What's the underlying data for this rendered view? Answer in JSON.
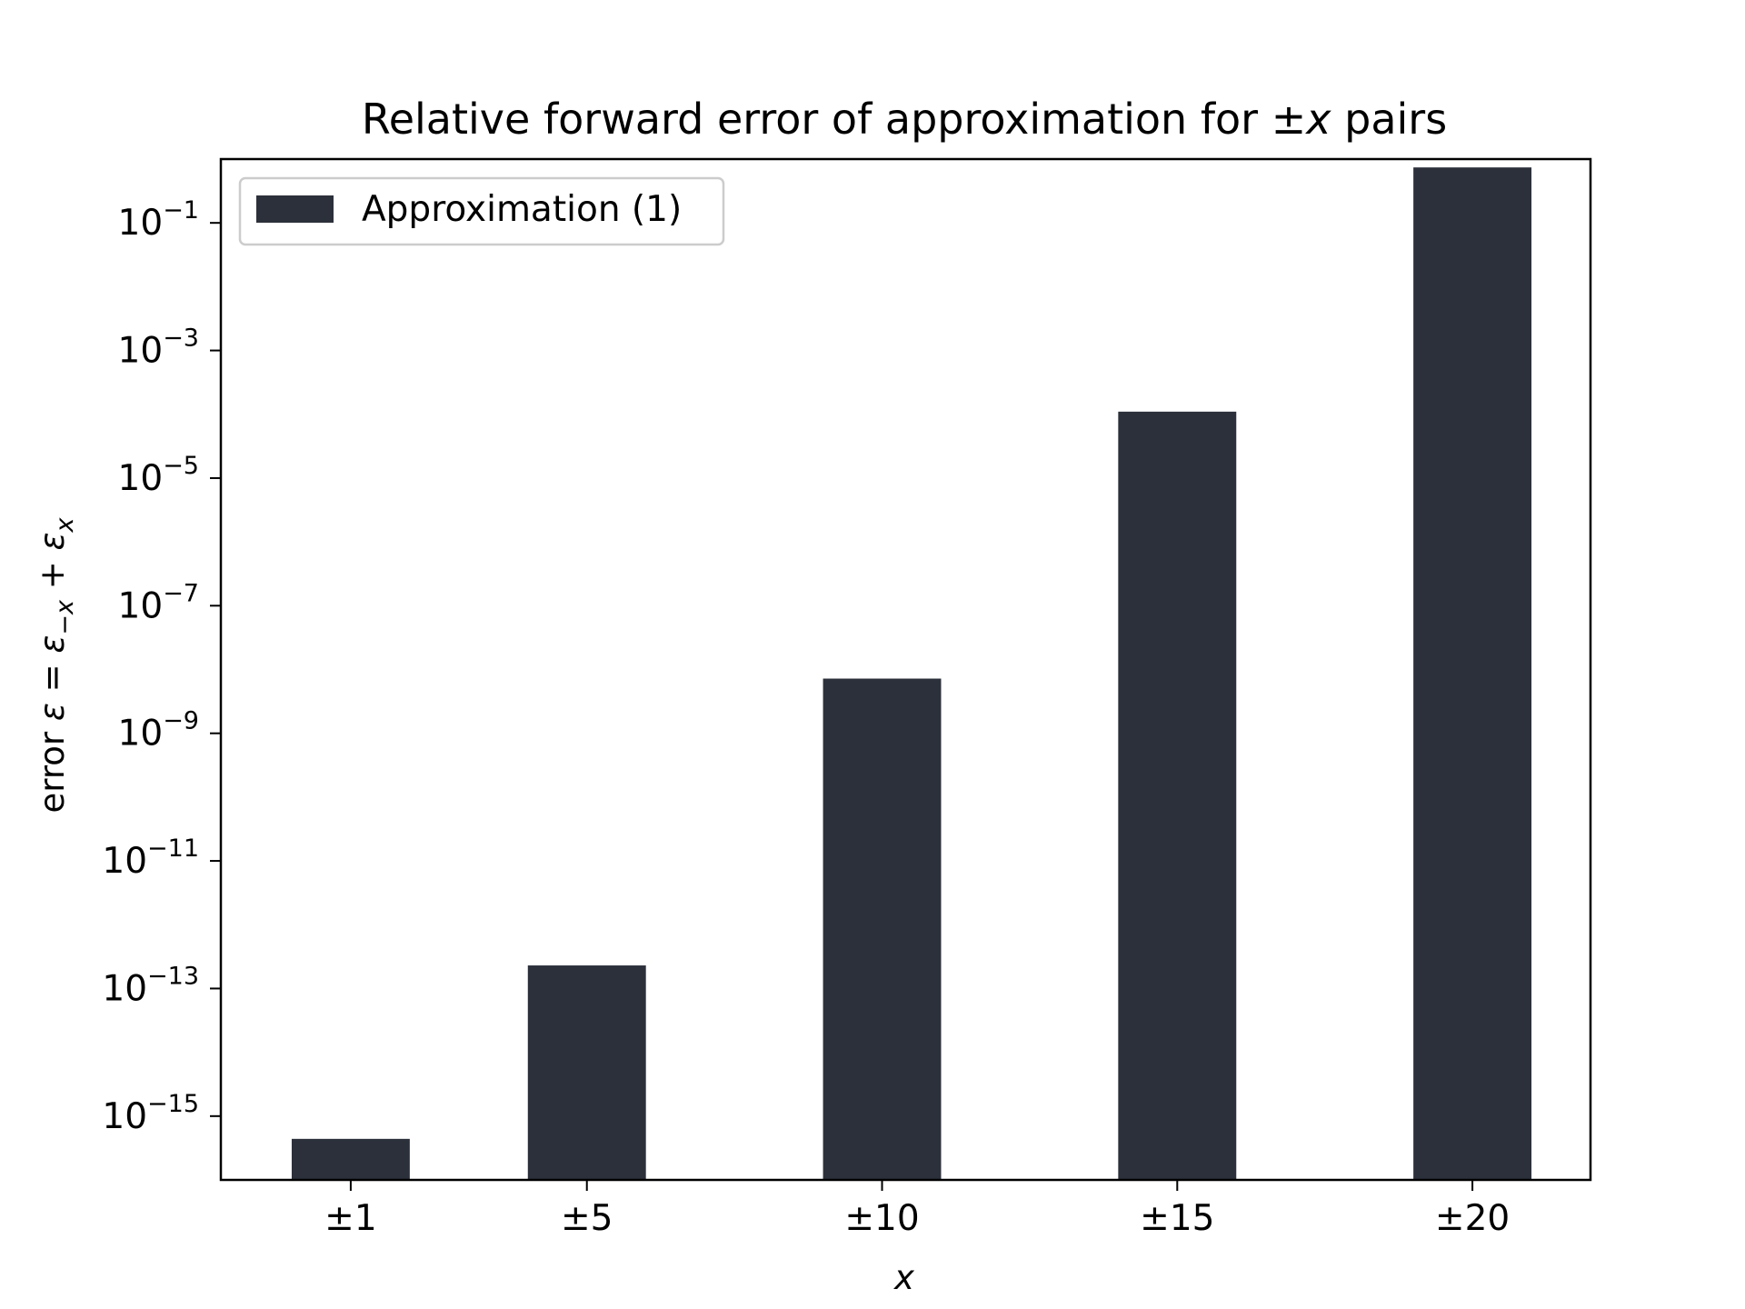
{
  "chart_data": {
    "type": "bar",
    "title": "Relative forward error of approximation for ±x pairs",
    "title_parts": {
      "prefix": "Relative forward error of approximation for ±",
      "var": "x",
      "suffix": " pairs"
    },
    "xlabel": "x",
    "ylabel": "error ε = ε₋ₓ + εₓ",
    "ylabel_parts": {
      "prefix": "error ",
      "eps": "ε",
      "eq": " = ",
      "sub1": "−x",
      "plus": " + ",
      "sub2": "x"
    },
    "y_scale": "log",
    "ylim": [
      1e-16,
      1.0
    ],
    "yticks": [
      {
        "base": "10",
        "exp": "−1",
        "value": 0.1
      },
      {
        "base": "10",
        "exp": "−3",
        "value": 0.001
      },
      {
        "base": "10",
        "exp": "−5",
        "value": 1e-05
      },
      {
        "base": "10",
        "exp": "−7",
        "value": 1e-07
      },
      {
        "base": "10",
        "exp": "−9",
        "value": 1e-09
      },
      {
        "base": "10",
        "exp": "−11",
        "value": 1e-11
      },
      {
        "base": "10",
        "exp": "−13",
        "value": 1e-13
      },
      {
        "base": "10",
        "exp": "−15",
        "value": 1e-15
      }
    ],
    "x_positions": [
      1,
      5,
      10,
      15,
      20
    ],
    "xlim": [
      -1.2,
      22.0
    ],
    "bar_width": 2.0,
    "categories": [
      "±1",
      "±5",
      "±10",
      "±15",
      "±20"
    ],
    "series": [
      {
        "name": "Approximation (1)",
        "color": "#2c303a",
        "values": [
          4.4e-16,
          2.3e-13,
          7.2e-09,
          0.00011,
          0.74
        ]
      }
    ],
    "legend_position": "top-left",
    "grid": false
  }
}
